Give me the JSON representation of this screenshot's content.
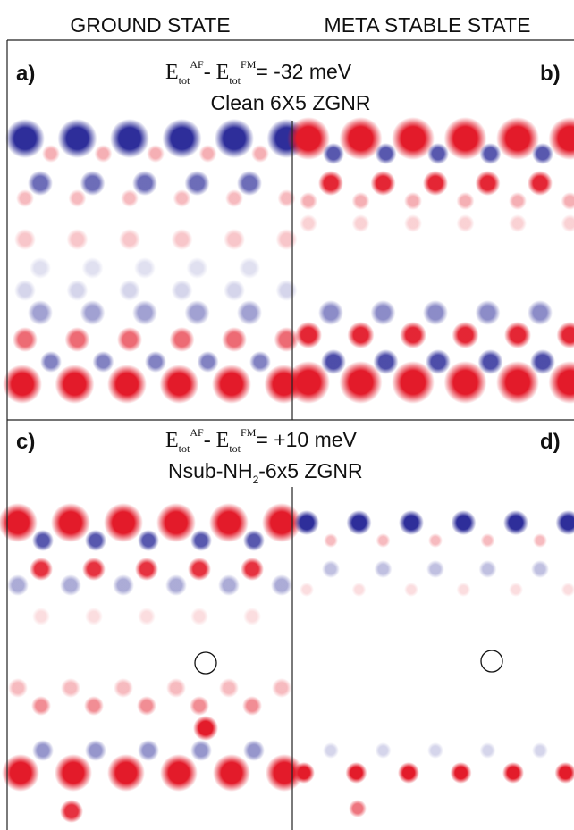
{
  "header": {
    "left": "GROUND STATE",
    "right": "META STABLE STATE"
  },
  "rows": [
    {
      "labels": [
        "a)",
        "b)"
      ],
      "energy": {
        "e1": "E",
        "sub1": "tot",
        "sup1": "AF",
        "e2": "- E",
        "sub2": "tot",
        "sup2": "FM",
        "value": "= -32 meV"
      },
      "system": {
        "text": "Clean 6X5 ZGNR"
      }
    },
    {
      "labels": [
        "c)",
        "d)"
      ],
      "energy": {
        "e1": "E",
        "sub1": "tot",
        "sup1": "AF",
        "e2": "- E",
        "sub2": "tot",
        "sup2": "FM",
        "value": "= +10 meV"
      },
      "system": {
        "pre": "Nsub-NH",
        "sub": "2",
        "post": "-6x5 ZGNR"
      }
    }
  ]
}
